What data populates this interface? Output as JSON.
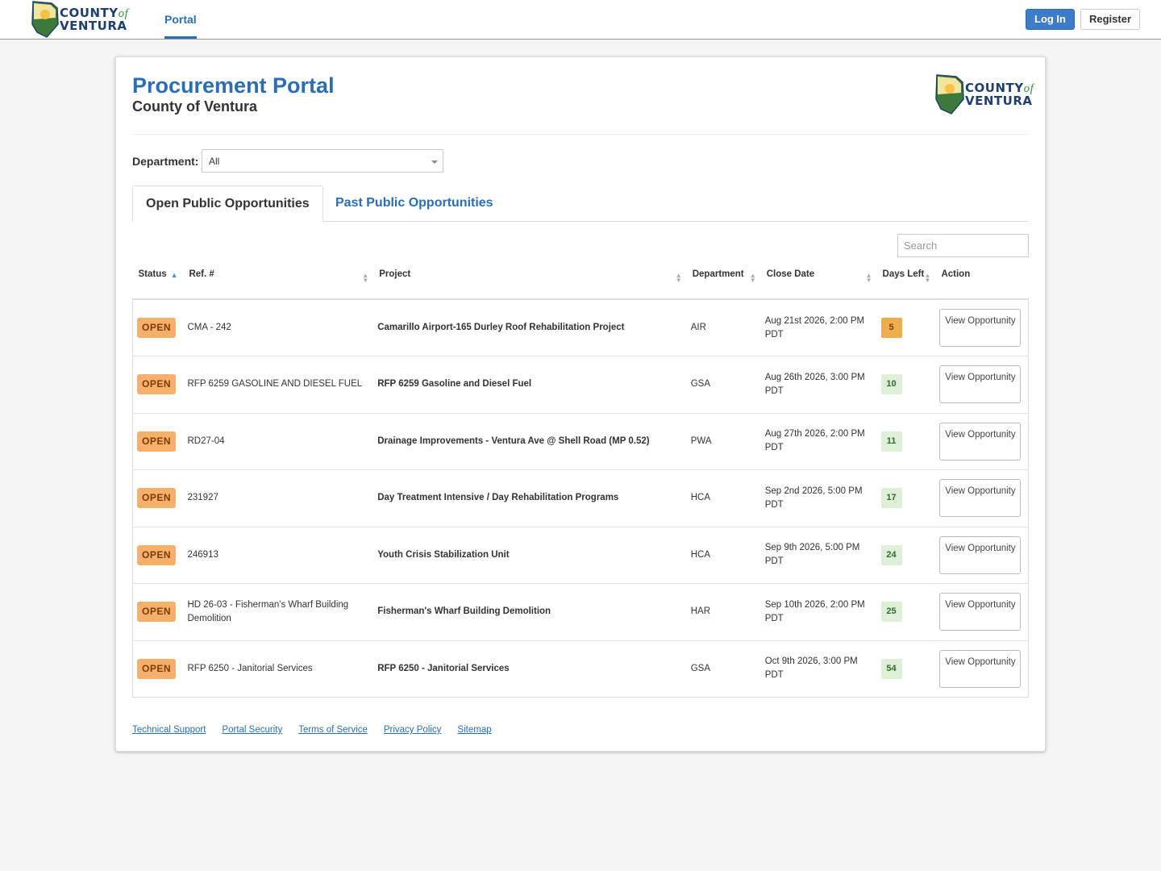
{
  "nav": {
    "logo": {
      "county": "COUNTY",
      "of": "of",
      "ventura": "VENTURA"
    },
    "links": [
      "Portal"
    ],
    "login": "Log In",
    "register": "Register"
  },
  "header": {
    "title": "Procurement Portal",
    "subtitle": "County of Ventura"
  },
  "filter": {
    "label": "Department:",
    "value": "All"
  },
  "tabs": [
    "Open Public Opportunities",
    "Past Public Opportunities"
  ],
  "search_placeholder": "Search",
  "table": {
    "columns": [
      "Status",
      "Ref. #",
      "Project",
      "Department",
      "Close Date",
      "Days Left",
      "Action"
    ],
    "rows": [
      {
        "status": "OPEN",
        "ref": "CMA - 242",
        "project": "Camarillo Airport-165 Durley Roof Rehabilitation Project",
        "department": "AIR",
        "close_date": "Aug 21st 2026, 2:00 PM PDT",
        "days_left": 5,
        "days_left_bg": "#f0ad4e",
        "days_left_fg": "#7a3b00",
        "action": "View Opportunity"
      },
      {
        "status": "OPEN",
        "ref": "RFP 6259 GASOLINE AND DIESEL FUEL",
        "project": "RFP 6259 Gasoline and Diesel Fuel",
        "department": "GSA",
        "close_date": "Aug 26th 2026, 3:00 PM PDT",
        "days_left": 10,
        "days_left_bg": "#dff0d8",
        "days_left_fg": "#2f6b2f",
        "action": "View Opportunity"
      },
      {
        "status": "OPEN",
        "ref": "RD27-04",
        "project": "Drainage Improvements - Ventura Ave @ Shell Road (MP 0.52)",
        "department": "PWA",
        "close_date": "Aug 27th 2026, 2:00 PM PDT",
        "days_left": 11,
        "days_left_bg": "#dff0d8",
        "days_left_fg": "#2f6b2f",
        "action": "View Opportunity"
      },
      {
        "status": "OPEN",
        "ref": "231927",
        "project": "Day Treatment Intensive / Day Rehabilitation Programs",
        "department": "HCA",
        "close_date": "Sep 2nd 2026, 5:00 PM PDT",
        "days_left": 17,
        "days_left_bg": "#dff0d8",
        "days_left_fg": "#2f6b2f",
        "action": "View Opportunity"
      },
      {
        "status": "OPEN",
        "ref": "246913",
        "project": "Youth Crisis Stabilization Unit",
        "department": "HCA",
        "close_date": "Sep 9th 2026, 5:00 PM PDT",
        "days_left": 24,
        "days_left_bg": "#dff0d8",
        "days_left_fg": "#2f6b2f",
        "action": "View Opportunity"
      },
      {
        "status": "OPEN",
        "ref": "HD 26-03 - Fisherman's Wharf Building Demolition",
        "project": "Fisherman's Wharf Building Demolition",
        "department": "HAR",
        "close_date": "Sep 10th 2026, 2:00 PM PDT",
        "days_left": 25,
        "days_left_bg": "#dff0d8",
        "days_left_fg": "#2f6b2f",
        "action": "View Opportunity"
      },
      {
        "status": "OPEN",
        "ref": "RFP 6250 - Janitorial Services",
        "project": "RFP 6250 - Janitorial Services",
        "department": "GSA",
        "close_date": "Oct 9th 2026, 3:00 PM PDT",
        "days_left": 54,
        "days_left_bg": "#dff0d8",
        "days_left_fg": "#2f6b2f",
        "action": "View Opportunity"
      }
    ]
  },
  "footer_links": [
    "Technical Support",
    "Portal Security",
    "Terms of Service",
    "Privacy Policy",
    "Sitemap"
  ]
}
